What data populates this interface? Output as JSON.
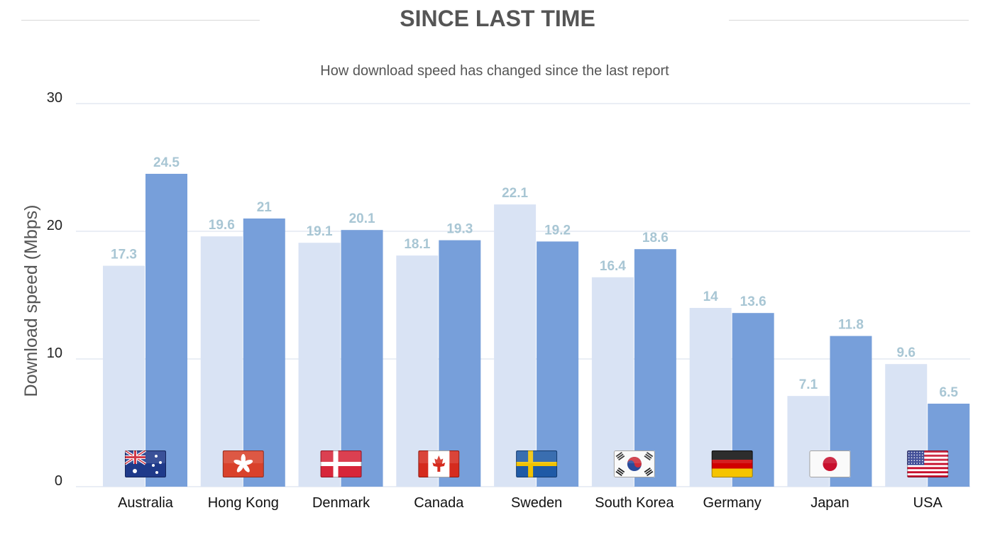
{
  "header": {
    "title": "SINCE LAST TIME",
    "subtitle": "How download speed has changed since the last report"
  },
  "chart_data": {
    "type": "bar",
    "title": "SINCE LAST TIME",
    "subtitle": "How download speed has changed since the last report",
    "xlabel": "",
    "ylabel": "Download speed (Mbps)",
    "ylim": [
      0,
      30
    ],
    "yticks": [
      "0",
      "10",
      "20",
      "30"
    ],
    "grid": true,
    "legend": "none",
    "categories": [
      "Australia",
      "Hong Kong",
      "Denmark",
      "Canada",
      "Sweden",
      "South Korea",
      "Germany",
      "Japan",
      "USA"
    ],
    "flags": [
      "australia-flag-icon",
      "hong-kong-flag-icon",
      "denmark-flag-icon",
      "canada-flag-icon",
      "sweden-flag-icon",
      "south-korea-flag-icon",
      "germany-flag-icon",
      "japan-flag-icon",
      "usa-flag-icon"
    ],
    "series": [
      {
        "values": [
          17.3,
          19.6,
          19.1,
          18.1,
          22.1,
          16.4,
          14,
          7.1,
          9.6
        ],
        "labels": [
          "17.3",
          "19.6",
          "19.1",
          "18.1",
          "22.1",
          "16.4",
          "14",
          "7.1",
          "9.6"
        ],
        "color": "#d9e3f4"
      },
      {
        "values": [
          24.5,
          21,
          20.1,
          19.3,
          19.2,
          18.6,
          13.6,
          11.8,
          6.5
        ],
        "labels": [
          "24.5",
          "21",
          "20.1",
          "19.3",
          "19.2",
          "18.6",
          "13.6",
          "11.8",
          "6.5"
        ],
        "color": "#779fda"
      }
    ],
    "label_color": "#a8c6d4",
    "grid_color": "#e3e8f2"
  }
}
